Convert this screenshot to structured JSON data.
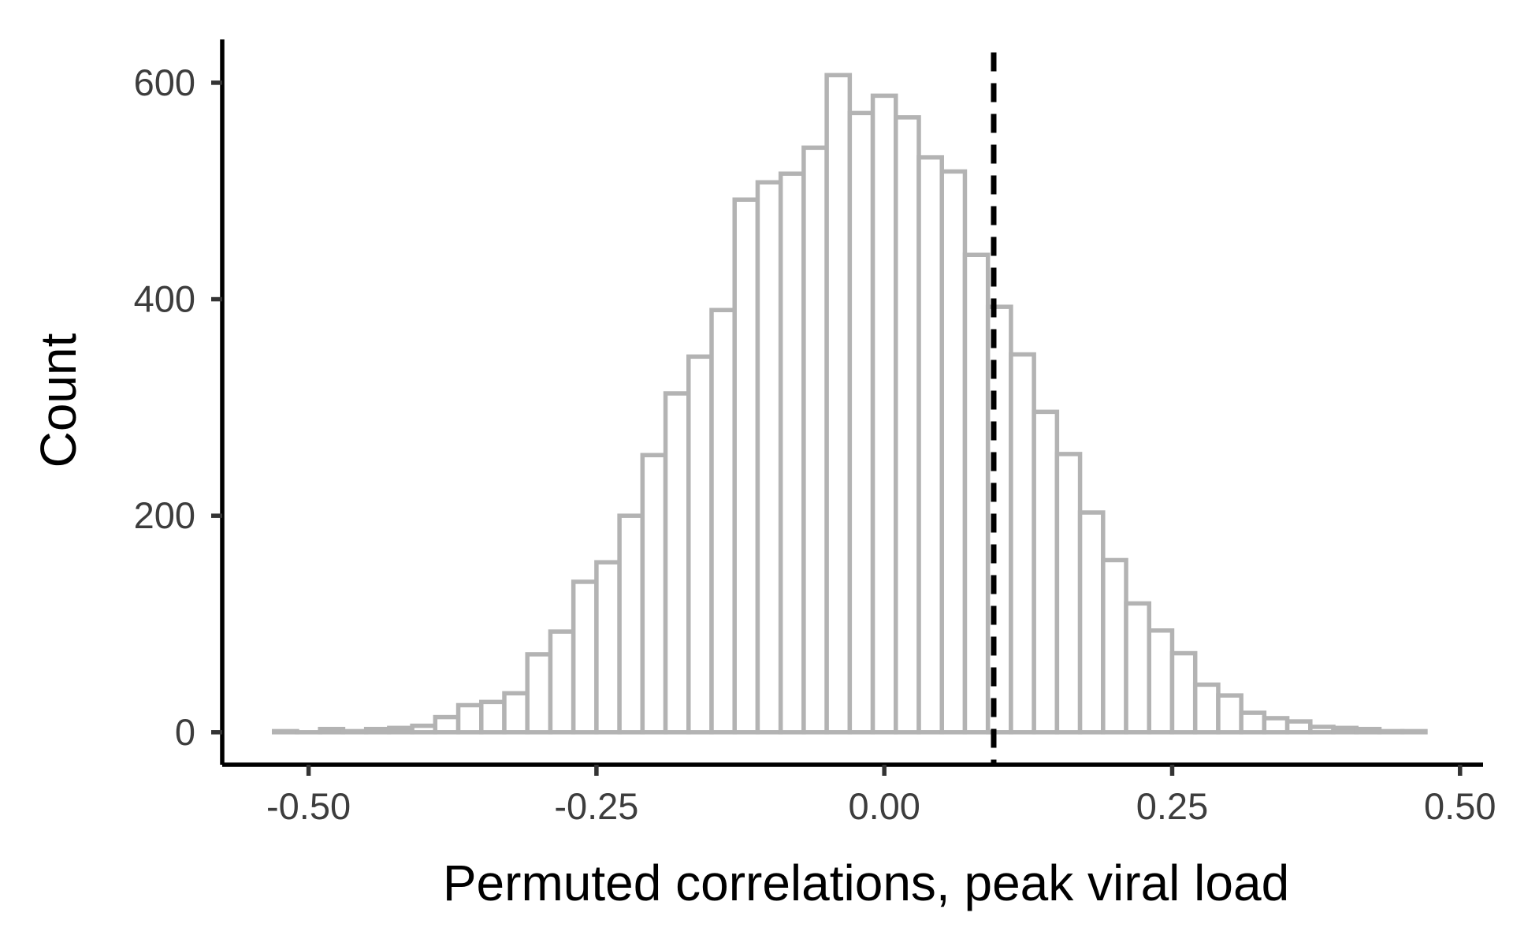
{
  "chart_data": {
    "type": "bar",
    "subtype": "histogram",
    "xlabel": "Permuted correlations, peak viral load",
    "ylabel": "Count",
    "xlim": [
      -0.575,
      0.52
    ],
    "ylim": [
      -30,
      640
    ],
    "x_ticks": [
      {
        "value": -0.5,
        "label": "-0.50"
      },
      {
        "value": -0.25,
        "label": "-0.25"
      },
      {
        "value": 0.0,
        "label": "0.00"
      },
      {
        "value": 0.25,
        "label": "0.25"
      },
      {
        "value": 0.5,
        "label": "0.50"
      }
    ],
    "y_ticks": [
      {
        "value": 0,
        "label": "0"
      },
      {
        "value": 200,
        "label": "200"
      },
      {
        "value": 400,
        "label": "400"
      },
      {
        "value": 600,
        "label": "600"
      }
    ],
    "bin_width": 0.02,
    "bins_x": [
      -0.52,
      -0.5,
      -0.48,
      -0.46,
      -0.44,
      -0.42,
      -0.4,
      -0.38,
      -0.36,
      -0.34,
      -0.32,
      -0.3,
      -0.28,
      -0.26,
      -0.24,
      -0.22,
      -0.2,
      -0.18,
      -0.16,
      -0.14,
      -0.12,
      -0.1,
      -0.08,
      -0.06,
      -0.04,
      -0.02,
      0.0,
      0.02,
      0.04,
      0.06,
      0.08,
      0.1,
      0.12,
      0.14,
      0.16,
      0.18,
      0.2,
      0.22,
      0.24,
      0.26,
      0.28,
      0.3,
      0.32,
      0.34,
      0.36,
      0.38,
      0.4,
      0.42,
      0.44,
      0.46
    ],
    "values": [
      1,
      0,
      3,
      1,
      3,
      4,
      6,
      14,
      25,
      28,
      36,
      72,
      93,
      139,
      157,
      200,
      256,
      313,
      347,
      390,
      492,
      508,
      516,
      540,
      607,
      572,
      588,
      568,
      531,
      518,
      441,
      393,
      349,
      296,
      257,
      203,
      159,
      119,
      94,
      73,
      44,
      34,
      18,
      13,
      10,
      5,
      4,
      3,
      1,
      1
    ],
    "reference_line": {
      "x": 0.095,
      "style": "dashed",
      "color": "#000000"
    },
    "colors": {
      "bar_outline": "#b3b3b3",
      "bar_fill": "#ffffff",
      "axis": "#000000",
      "tick_label": "#3d3d3d"
    },
    "grid": false,
    "legend": "none"
  }
}
